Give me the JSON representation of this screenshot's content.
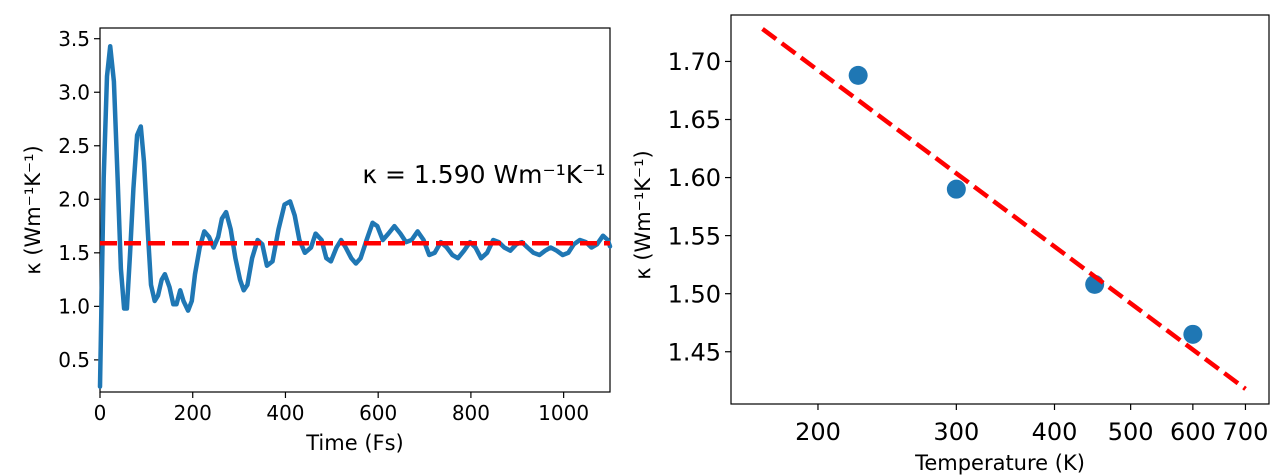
{
  "chart_data": [
    {
      "type": "line",
      "xlabel": "Time (Fs)",
      "ylabel": "κ (Wm⁻¹K⁻¹)",
      "xlim": [
        0,
        1100
      ],
      "ylim": [
        0.2,
        3.6
      ],
      "xticks": [
        0,
        200,
        400,
        600,
        800,
        1000
      ],
      "xtick_labels": [
        "0",
        "200",
        "400",
        "600",
        "800",
        "1000"
      ],
      "yticks": [
        0.5,
        1.0,
        1.5,
        2.0,
        2.5,
        3.0,
        3.5
      ],
      "ytick_labels": [
        "0.5",
        "1.0",
        "1.5",
        "2.0",
        "2.5",
        "3.0",
        "3.5"
      ],
      "grid": false,
      "series": [
        {
          "color": "#1f77b4",
          "style": "solid",
          "x": [
            0,
            8,
            15,
            22,
            30,
            38,
            45,
            52,
            58,
            65,
            72,
            80,
            88,
            95,
            103,
            110,
            118,
            125,
            133,
            140,
            150,
            158,
            165,
            173,
            180,
            190,
            198,
            205,
            215,
            225,
            235,
            245,
            255,
            263,
            272,
            282,
            292,
            302,
            310,
            318,
            328,
            340,
            350,
            360,
            372,
            385,
            398,
            410,
            420,
            430,
            442,
            455,
            465,
            478,
            488,
            498,
            510,
            520,
            530,
            542,
            552,
            562,
            575,
            588,
            598,
            610,
            622,
            635,
            648,
            660,
            672,
            685,
            698,
            710,
            722,
            735,
            748,
            760,
            772,
            785,
            798,
            810,
            822,
            835,
            848,
            860,
            872,
            885,
            898,
            910,
            922,
            935,
            948,
            960,
            972,
            985,
            998,
            1010,
            1022,
            1035,
            1048,
            1060,
            1072,
            1085,
            1095,
            1100
          ],
          "y": [
            0.25,
            2.2,
            3.15,
            3.43,
            3.1,
            2.2,
            1.35,
            0.98,
            0.98,
            1.5,
            2.1,
            2.6,
            2.68,
            2.35,
            1.7,
            1.2,
            1.05,
            1.1,
            1.25,
            1.3,
            1.18,
            1.02,
            1.02,
            1.15,
            1.05,
            0.96,
            1.05,
            1.3,
            1.55,
            1.7,
            1.65,
            1.55,
            1.65,
            1.82,
            1.88,
            1.72,
            1.45,
            1.25,
            1.15,
            1.2,
            1.45,
            1.62,
            1.58,
            1.38,
            1.42,
            1.72,
            1.95,
            1.98,
            1.85,
            1.62,
            1.5,
            1.55,
            1.68,
            1.62,
            1.45,
            1.42,
            1.55,
            1.62,
            1.55,
            1.45,
            1.4,
            1.45,
            1.62,
            1.78,
            1.75,
            1.62,
            1.68,
            1.75,
            1.68,
            1.6,
            1.62,
            1.7,
            1.62,
            1.48,
            1.5,
            1.6,
            1.55,
            1.48,
            1.45,
            1.52,
            1.6,
            1.55,
            1.45,
            1.5,
            1.62,
            1.6,
            1.55,
            1.52,
            1.58,
            1.6,
            1.55,
            1.5,
            1.48,
            1.52,
            1.55,
            1.52,
            1.48,
            1.5,
            1.58,
            1.62,
            1.6,
            1.55,
            1.58,
            1.66,
            1.62,
            1.56
          ]
        },
        {
          "color": "#ff0000",
          "style": "dashed",
          "x": [
            0,
            1100
          ],
          "y": [
            1.59,
            1.59
          ]
        }
      ],
      "annotations": [
        {
          "text": "κ = 1.590 Wm⁻¹K⁻¹",
          "x": 1090,
          "y": 2.15,
          "color": "#ff0000"
        }
      ]
    },
    {
      "type": "scatter",
      "xlabel": "Temperature (K)",
      "ylabel": "κ (Wm⁻¹K⁻¹)",
      "xscale": "log",
      "xlim": [
        155,
        750
      ],
      "ylim": [
        1.405,
        1.74
      ],
      "xticks": [
        200,
        300,
        400,
        500,
        600,
        700
      ],
      "xtick_labels": [
        "200",
        "300",
        "400",
        "500",
        "600",
        "700"
      ],
      "yticks": [
        1.45,
        1.5,
        1.55,
        1.6,
        1.65,
        1.7
      ],
      "ytick_labels": [
        "1.45",
        "1.50",
        "1.55",
        "1.60",
        "1.65",
        "1.70"
      ],
      "grid": false,
      "series": [
        {
          "color": "#1f77b4",
          "style": "markers",
          "x": [
            225,
            300,
            450,
            600
          ],
          "y": [
            1.688,
            1.59,
            1.508,
            1.465
          ]
        },
        {
          "color": "#ff0000",
          "style": "dashed",
          "x": [
            170,
            700
          ],
          "y": [
            1.728,
            1.418
          ]
        }
      ]
    }
  ]
}
